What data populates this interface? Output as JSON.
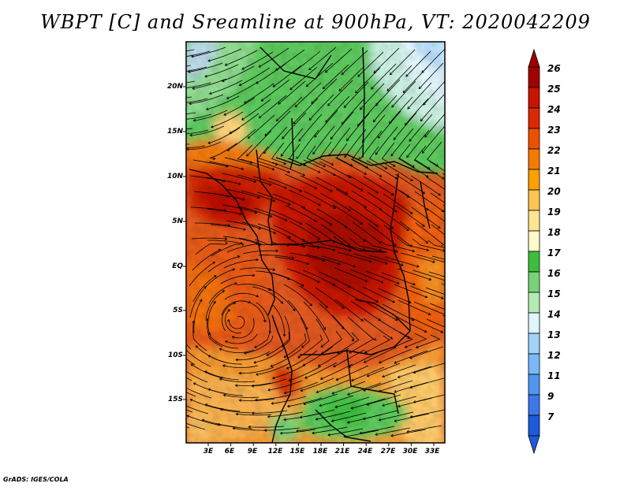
{
  "title": "WBPT [C] and Sreamline at 900hPa, VT: 2020042209",
  "credit": "GrADS: IGES/COLA",
  "map": {
    "lat_labels": [
      "20N",
      "15N",
      "10N",
      "5N",
      "EQ",
      "5S",
      "10S",
      "15S"
    ],
    "lon_labels": [
      "3E",
      "6E",
      "9E",
      "12E",
      "15E",
      "18E",
      "21E",
      "24E",
      "27E",
      "30E",
      "33E"
    ]
  },
  "colorbar": {
    "labels": [
      "26",
      "25",
      "24",
      "23",
      "22",
      "21",
      "20",
      "19",
      "18",
      "17",
      "16",
      "15",
      "14",
      "13",
      "12",
      "11",
      "9",
      "7"
    ],
    "colors": [
      "#a00000",
      "#c81400",
      "#dc2800",
      "#ee5000",
      "#f57a00",
      "#fba000",
      "#fcc550",
      "#fee690",
      "#fffac8",
      "#3cbe3c",
      "#78d278",
      "#b4ebb4",
      "#e0f5fa",
      "#a0d2fa",
      "#78b9fa",
      "#5096f0",
      "#3c78eb",
      "#1e5adc"
    ]
  }
}
